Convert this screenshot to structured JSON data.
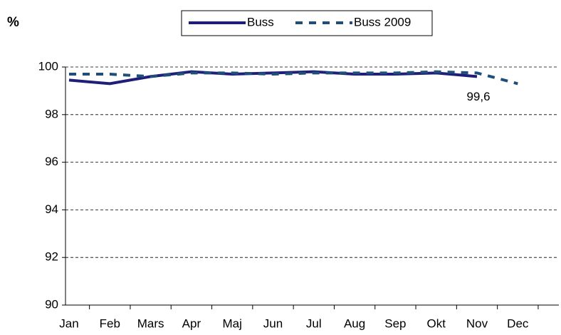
{
  "chart_data": {
    "type": "line",
    "y_label": "%",
    "categories": [
      "Jan",
      "Feb",
      "Mars",
      "Apr",
      "Maj",
      "Jun",
      "Jul",
      "Aug",
      "Sep",
      "Okt",
      "Nov",
      "Dec"
    ],
    "series": [
      {
        "name": "Buss",
        "color": "#1f1f7a",
        "dash": "solid",
        "values": [
          99.45,
          99.3,
          99.6,
          99.8,
          99.7,
          99.75,
          99.8,
          99.7,
          99.7,
          99.75,
          99.6,
          null
        ],
        "value_labels": [
          null,
          null,
          null,
          null,
          null,
          null,
          null,
          null,
          null,
          null,
          "99,6",
          null
        ]
      },
      {
        "name": "Buss 2009",
        "color": "#1f4e79",
        "dash": "dashed",
        "values": [
          99.7,
          99.7,
          99.6,
          99.75,
          99.75,
          99.7,
          99.75,
          99.75,
          99.75,
          99.8,
          99.75,
          99.3
        ]
      }
    ],
    "ylim": [
      90,
      100
    ],
    "yticks": [
      90,
      92,
      94,
      96,
      98,
      100
    ],
    "grid": true,
    "legend": "top"
  }
}
